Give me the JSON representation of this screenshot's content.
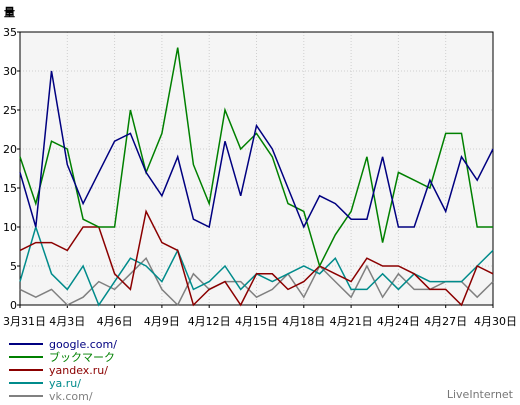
{
  "chart_data": {
    "type": "line",
    "ylabel": "量",
    "ylim": [
      0,
      35
    ],
    "yticks": [
      0,
      5,
      10,
      15,
      20,
      25,
      30,
      35
    ],
    "grid": true,
    "background": "#f5f5f5",
    "x": [
      "3月31日",
      "4月1日",
      "4月2日",
      "4月3日",
      "4月4日",
      "4月5日",
      "4月6日",
      "4月7日",
      "4月8日",
      "4月9日",
      "4月10日",
      "4月11日",
      "4月12日",
      "4月13日",
      "4月14日",
      "4月15日",
      "4月16日",
      "4月17日",
      "4月18日",
      "4月19日",
      "4月20日",
      "4月21日",
      "4月22日",
      "4月23日",
      "4月24日",
      "4月25日",
      "4月26日",
      "4月27日",
      "4月28日",
      "4月29日",
      "4月30日"
    ],
    "xtick_labels": [
      "3月31日",
      "4月3日",
      "4月6日",
      "4月9日",
      "4月12日",
      "4月15日",
      "4月18日",
      "4月21日",
      "4月24日",
      "4月27日",
      "4月30日"
    ],
    "xtick_indices": [
      0,
      3,
      6,
      9,
      12,
      15,
      18,
      21,
      24,
      27,
      30
    ],
    "series": [
      {
        "name": "google.com/",
        "color": "#000080",
        "values": [
          17,
          10,
          30,
          18,
          13,
          17,
          21,
          22,
          17,
          14,
          19,
          11,
          10,
          21,
          14,
          23,
          20,
          15,
          10,
          14,
          13,
          11,
          11,
          19,
          10,
          10,
          16,
          12,
          19,
          16,
          20
        ]
      },
      {
        "name": "ブックマーク",
        "color": "#008000",
        "values": [
          19,
          13,
          21,
          20,
          11,
          10,
          10,
          25,
          17,
          22,
          33,
          18,
          13,
          25,
          20,
          22,
          19,
          13,
          12,
          5,
          9,
          12,
          19,
          8,
          17,
          16,
          15,
          22,
          22,
          10,
          10
        ]
      },
      {
        "name": "yandex.ru/",
        "color": "#8b0000",
        "values": [
          7,
          8,
          8,
          7,
          10,
          10,
          4,
          2,
          12,
          8,
          7,
          0,
          2,
          3,
          0,
          4,
          4,
          2,
          3,
          5,
          4,
          3,
          6,
          5,
          5,
          4,
          2,
          2,
          0,
          5,
          4
        ]
      },
      {
        "name": "ya.ru/",
        "color": "#008b8b",
        "values": [
          3,
          10,
          4,
          2,
          5,
          0,
          3,
          6,
          5,
          3,
          7,
          2,
          3,
          5,
          2,
          4,
          3,
          4,
          5,
          4,
          6,
          2,
          2,
          4,
          2,
          4,
          3,
          3,
          3,
          5,
          7
        ]
      },
      {
        "name": "vk.com/",
        "color": "#808080",
        "values": [
          2,
          1,
          2,
          0,
          1,
          3,
          2,
          4,
          6,
          2,
          0,
          4,
          2,
          3,
          3,
          1,
          2,
          4,
          1,
          5,
          3,
          1,
          5,
          1,
          4,
          2,
          2,
          3,
          3,
          1,
          3
        ]
      }
    ]
  },
  "branding": {
    "text": "LiveInternet"
  }
}
